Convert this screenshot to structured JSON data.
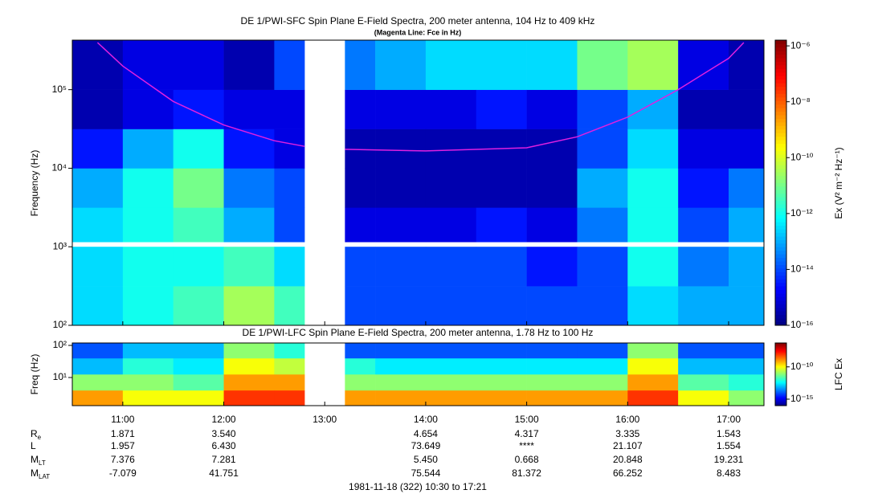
{
  "chart_data": [
    {
      "type": "heatmap",
      "title": "DE 1/PWI-SFC  Spin Plane E-Field Spectra, 200 meter antenna, 104 Hz to 409 kHz",
      "subtitle": "(Magenta Line: Fce in Hz)",
      "ylabel": "Frequency (Hz)",
      "colorbar_label": "Ex (V² m⁻² Hz⁻¹)",
      "xlim": [
        10.5,
        17.35
      ],
      "ylim": [
        100,
        427000
      ],
      "yscale": "log",
      "yticks": [
        {
          "value": 100,
          "label": "10²"
        },
        {
          "value": 1000,
          "label": "10³"
        },
        {
          "value": 10000,
          "label": "10⁴"
        },
        {
          "value": 100000,
          "label": "10⁵"
        }
      ],
      "clim": [
        1e-16,
        1.6e-06
      ],
      "cscale": "log",
      "cticks": [
        {
          "value": 1e-06,
          "label": "10⁻⁶"
        },
        {
          "value": 1e-08,
          "label": "10⁻⁸"
        },
        {
          "value": 1e-10,
          "label": "10⁻¹⁰"
        },
        {
          "value": 1e-12,
          "label": "10⁻¹²"
        },
        {
          "value": 1e-14,
          "label": "10⁻¹⁴"
        },
        {
          "value": 1e-16,
          "label": "10⁻¹⁶"
        }
      ],
      "xbins": [
        10.5,
        11.0,
        11.5,
        12.0,
        12.5,
        12.8,
        13.2,
        13.5,
        14.0,
        14.5,
        15.0,
        15.5,
        16.0,
        16.5,
        17.0,
        17.35
      ],
      "ybins": [
        100,
        316,
        1000,
        3162,
        10000,
        31623,
        100000,
        427000
      ],
      "values": [
        [
          3e-13,
          3e-13,
          3e-13,
          1e-13,
          3e-15,
          3e-16,
          3e-16
        ],
        [
          1e-12,
          1e-12,
          1e-12,
          1e-12,
          1e-13,
          1e-15,
          1e-15
        ],
        [
          3e-12,
          1e-12,
          3e-12,
          1e-11,
          1e-12,
          3e-15,
          1e-15
        ],
        [
          3e-11,
          3e-12,
          1e-13,
          3e-14,
          3e-15,
          1e-15,
          3e-16
        ],
        [
          3e-12,
          3e-13,
          1e-14,
          1e-14,
          1e-15,
          1e-15,
          1e-14
        ],
        null,
        [
          1e-14,
          1e-14,
          1e-15,
          3e-16,
          3e-16,
          1e-15,
          3e-14
        ],
        [
          1e-14,
          1e-14,
          1e-15,
          3e-16,
          3e-16,
          1e-15,
          1e-13
        ],
        [
          1e-14,
          1e-14,
          1e-15,
          3e-16,
          3e-16,
          1e-15,
          3e-13
        ],
        [
          1e-14,
          1e-14,
          3e-15,
          3e-16,
          3e-16,
          3e-15,
          3e-13
        ],
        [
          1e-14,
          3e-15,
          1e-15,
          3e-16,
          3e-16,
          1e-15,
          3e-13
        ],
        [
          1e-14,
          1e-14,
          3e-14,
          1e-13,
          1e-14,
          1e-14,
          1e-11
        ],
        [
          3e-13,
          1e-12,
          1e-12,
          1e-12,
          3e-13,
          1e-13,
          3e-11
        ],
        [
          1e-13,
          3e-14,
          1e-14,
          3e-15,
          1e-15,
          3e-16,
          1e-15
        ],
        [
          1e-13,
          1e-13,
          1e-13,
          3e-14,
          1e-15,
          3e-16,
          3e-16
        ]
      ],
      "line": {
        "color": "#e020e0",
        "x": [
          10.75,
          11.0,
          11.5,
          12.0,
          12.5,
          12.8,
          13.0,
          13.2,
          14.0,
          15.0,
          15.5,
          16.0,
          16.5,
          17.0,
          17.15
        ],
        "values": [
          398000,
          200000,
          70800,
          35500,
          22400,
          19000,
          null,
          17400,
          16600,
          18200,
          25100,
          44700,
          100000,
          251000,
          398000
        ]
      }
    },
    {
      "type": "heatmap",
      "title": "DE 1/PWI-LFC  Spin Plane E-Field Spectra, 200 meter antenna, 1.78 Hz to 100 Hz",
      "ylabel": "Freq (Hz)",
      "colorbar_label": "LFC Ex",
      "xlim": [
        10.5,
        17.35
      ],
      "ylim": [
        1.33,
        119
      ],
      "yscale": "log",
      "yticks": [
        {
          "value": 10,
          "label": "10¹"
        },
        {
          "value": 100,
          "label": "10²"
        }
      ],
      "xticks": [
        {
          "value": 11,
          "label": "11:00"
        },
        {
          "value": 12,
          "label": "12:00"
        },
        {
          "value": 13,
          "label": "13:00"
        },
        {
          "value": 14,
          "label": "14:00"
        },
        {
          "value": 15,
          "label": "15:00"
        },
        {
          "value": 16,
          "label": "16:00"
        },
        {
          "value": 17,
          "label": "17:00"
        }
      ],
      "clim": [
        1e-16,
        5e-07
      ],
      "cscale": "log",
      "cticks": [
        {
          "value": 1e-10,
          "label": "10⁻¹⁰"
        },
        {
          "value": 1e-15,
          "label": "10⁻¹⁵"
        }
      ],
      "xbins": [
        10.5,
        11.0,
        11.5,
        12.0,
        12.5,
        12.8,
        13.2,
        13.5,
        14.0,
        14.5,
        15.0,
        15.5,
        16.0,
        16.5,
        17.0,
        17.35
      ],
      "ybins": [
        1.33,
        4,
        12.6,
        40,
        119
      ],
      "values": [
        [
          1e-09,
          1e-11,
          1e-13,
          1e-14
        ],
        [
          1e-10,
          1e-11,
          1e-12,
          1e-13
        ],
        [
          1e-10,
          3e-12,
          3e-13,
          1e-13
        ],
        [
          1e-08,
          1e-09,
          1e-10,
          1e-11
        ],
        [
          1e-08,
          1e-09,
          3e-11,
          1e-12
        ],
        null,
        [
          1e-09,
          1e-11,
          1e-12,
          1e-14
        ],
        [
          1e-09,
          1e-11,
          3e-13,
          1e-14
        ],
        [
          1e-09,
          1e-11,
          3e-13,
          1e-14
        ],
        [
          1e-09,
          1e-11,
          3e-13,
          1e-14
        ],
        [
          1e-09,
          1e-11,
          3e-13,
          1e-14
        ],
        [
          1e-09,
          1e-11,
          3e-13,
          1e-14
        ],
        [
          1e-08,
          1e-09,
          1e-10,
          1e-11
        ],
        [
          1e-10,
          3e-12,
          1e-13,
          1e-14
        ],
        [
          1e-11,
          1e-12,
          1e-13,
          1e-14
        ]
      ]
    }
  ],
  "ephemeris": {
    "at": [
      11,
      12,
      14,
      15,
      16,
      17
    ],
    "rows": [
      {
        "name": "R",
        "sub": "e",
        "values": [
          "1.871",
          "3.540",
          "4.654",
          "4.317",
          "3.335",
          "1.543"
        ]
      },
      {
        "name": "L",
        "values": [
          "1.957",
          "6.430",
          "73.649",
          "****",
          "21.107",
          "1.554"
        ]
      },
      {
        "name": "M",
        "sub": "LT",
        "values": [
          "7.376",
          "7.281",
          "5.450",
          "0.668",
          "20.848",
          "19.231"
        ]
      },
      {
        "name": "M",
        "sub": "LAT",
        "values": [
          "-7.079",
          "41.751",
          "75.544",
          "81.372",
          "66.252",
          "8.483"
        ]
      }
    ]
  },
  "date_label": "1981-11-18 (322) 10:30 to 17:21"
}
